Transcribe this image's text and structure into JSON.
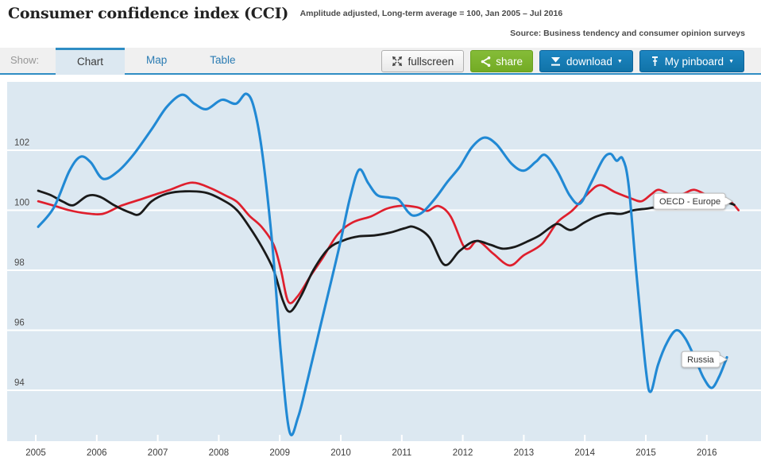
{
  "header": {
    "title": "Consumer confidence index (CCI)",
    "subtitle": "Amplitude adjusted, Long-term average = 100, Jan 2005 – Jul 2016",
    "source": "Source: Business tendency and consumer opinion surveys"
  },
  "toolbar": {
    "show_label": "Show:",
    "tabs": [
      {
        "label": "Chart",
        "active": true
      },
      {
        "label": "Map",
        "active": false
      },
      {
        "label": "Table",
        "active": false
      }
    ],
    "buttons": {
      "fullscreen": "fullscreen",
      "share": "share",
      "download": "download",
      "pinboard": "My pinboard",
      "caret": "▼"
    }
  },
  "colors": {
    "accent_blue": "#2f8dc4",
    "button_blue": "#1477b2",
    "button_green": "#7cb42e",
    "chart_bg": "#dce8f1",
    "gridline": "#ffffff",
    "line_russia": "#2189d4",
    "line_unlabeled": "#df1f2d",
    "line_oecd_europe": "#1a1a1a",
    "tick_label": "#4a4a4a"
  },
  "chart_data": {
    "type": "line",
    "title": "Consumer confidence index (CCI)",
    "subtitle": "Amplitude adjusted, Long-term average = 100, Jan 2005 – Jul 2016",
    "xlabel": "",
    "ylabel": "",
    "x_axis": {
      "ticks": [
        2005,
        2006,
        2007,
        2008,
        2009,
        2010,
        2011,
        2012,
        2013,
        2014,
        2015,
        2016
      ],
      "range": [
        2004.53,
        2016.89
      ],
      "gridlines": false
    },
    "y_axis": {
      "ticks": [
        94,
        96,
        98,
        100,
        102
      ],
      "range": [
        92.3,
        104.28
      ],
      "gridlines": true,
      "gridline_color": "#ffffff"
    },
    "legend_position": "inline-callouts",
    "series": [
      {
        "key": "unlabeled",
        "name": "",
        "color": "#df1f2d",
        "points": [
          [
            2005.04,
            100.3
          ],
          [
            2005.3,
            100.15
          ],
          [
            2005.55,
            100.0
          ],
          [
            2005.82,
            99.9
          ],
          [
            2006.1,
            99.88
          ],
          [
            2006.4,
            100.15
          ],
          [
            2006.7,
            100.35
          ],
          [
            2006.95,
            100.52
          ],
          [
            2007.2,
            100.68
          ],
          [
            2007.55,
            100.92
          ],
          [
            2007.85,
            100.75
          ],
          [
            2008.1,
            100.5
          ],
          [
            2008.3,
            100.28
          ],
          [
            2008.5,
            99.82
          ],
          [
            2008.7,
            99.45
          ],
          [
            2008.9,
            98.85
          ],
          [
            2009.02,
            98.0
          ],
          [
            2009.14,
            96.95
          ],
          [
            2009.3,
            97.15
          ],
          [
            2009.5,
            97.8
          ],
          [
            2009.7,
            98.4
          ],
          [
            2009.95,
            99.2
          ],
          [
            2010.2,
            99.6
          ],
          [
            2010.5,
            99.8
          ],
          [
            2010.75,
            100.05
          ],
          [
            2011.0,
            100.15
          ],
          [
            2011.25,
            100.1
          ],
          [
            2011.42,
            99.98
          ],
          [
            2011.6,
            100.14
          ],
          [
            2011.8,
            99.8
          ],
          [
            2012.0,
            98.85
          ],
          [
            2012.1,
            98.72
          ],
          [
            2012.25,
            98.98
          ],
          [
            2012.5,
            98.55
          ],
          [
            2012.77,
            98.16
          ],
          [
            2013.0,
            98.5
          ],
          [
            2013.3,
            98.88
          ],
          [
            2013.55,
            99.6
          ],
          [
            2013.8,
            100.0
          ],
          [
            2014.05,
            100.55
          ],
          [
            2014.25,
            100.84
          ],
          [
            2014.5,
            100.6
          ],
          [
            2014.75,
            100.4
          ],
          [
            2014.93,
            100.3
          ],
          [
            2015.1,
            100.55
          ],
          [
            2015.22,
            100.68
          ],
          [
            2015.45,
            100.48
          ],
          [
            2015.62,
            100.55
          ],
          [
            2015.8,
            100.68
          ],
          [
            2016.05,
            100.45
          ],
          [
            2016.25,
            100.3
          ],
          [
            2016.4,
            100.26
          ],
          [
            2016.52,
            100.0
          ]
        ]
      },
      {
        "key": "oecd_europe",
        "name": "OECD - Europe",
        "color": "#1a1a1a",
        "points": [
          [
            2005.04,
            100.65
          ],
          [
            2005.25,
            100.5
          ],
          [
            2005.45,
            100.28
          ],
          [
            2005.62,
            100.17
          ],
          [
            2005.85,
            100.48
          ],
          [
            2006.05,
            100.45
          ],
          [
            2006.3,
            100.15
          ],
          [
            2006.55,
            99.92
          ],
          [
            2006.7,
            99.87
          ],
          [
            2006.9,
            100.3
          ],
          [
            2007.15,
            100.55
          ],
          [
            2007.45,
            100.63
          ],
          [
            2007.8,
            100.58
          ],
          [
            2008.1,
            100.3
          ],
          [
            2008.3,
            100.0
          ],
          [
            2008.5,
            99.45
          ],
          [
            2008.7,
            98.8
          ],
          [
            2008.9,
            98.0
          ],
          [
            2009.05,
            97.0
          ],
          [
            2009.17,
            96.62
          ],
          [
            2009.35,
            97.15
          ],
          [
            2009.55,
            98.0
          ],
          [
            2009.8,
            98.72
          ],
          [
            2010.05,
            99.0
          ],
          [
            2010.3,
            99.13
          ],
          [
            2010.55,
            99.16
          ],
          [
            2010.8,
            99.25
          ],
          [
            2011.05,
            99.4
          ],
          [
            2011.2,
            99.44
          ],
          [
            2011.45,
            99.1
          ],
          [
            2011.7,
            98.18
          ],
          [
            2011.95,
            98.65
          ],
          [
            2012.2,
            98.97
          ],
          [
            2012.45,
            98.85
          ],
          [
            2012.65,
            98.72
          ],
          [
            2012.85,
            98.78
          ],
          [
            2013.05,
            98.95
          ],
          [
            2013.25,
            99.15
          ],
          [
            2013.45,
            99.45
          ],
          [
            2013.57,
            99.54
          ],
          [
            2013.77,
            99.34
          ],
          [
            2014.0,
            99.6
          ],
          [
            2014.2,
            99.8
          ],
          [
            2014.4,
            99.9
          ],
          [
            2014.6,
            99.88
          ],
          [
            2014.8,
            100.0
          ],
          [
            2015.0,
            100.05
          ],
          [
            2015.2,
            100.1
          ],
          [
            2015.5,
            100.06
          ],
          [
            2015.8,
            100.14
          ],
          [
            2016.05,
            100.22
          ],
          [
            2016.25,
            100.3
          ],
          [
            2016.45,
            100.18
          ]
        ]
      },
      {
        "key": "russia",
        "name": "Russia",
        "color": "#2189d4",
        "points": [
          [
            2005.04,
            99.45
          ],
          [
            2005.3,
            100.1
          ],
          [
            2005.55,
            101.3
          ],
          [
            2005.73,
            101.78
          ],
          [
            2005.9,
            101.6
          ],
          [
            2006.1,
            101.05
          ],
          [
            2006.35,
            101.3
          ],
          [
            2006.6,
            101.85
          ],
          [
            2006.9,
            102.7
          ],
          [
            2007.15,
            103.45
          ],
          [
            2007.4,
            103.85
          ],
          [
            2007.6,
            103.55
          ],
          [
            2007.8,
            103.37
          ],
          [
            2008.05,
            103.68
          ],
          [
            2008.28,
            103.55
          ],
          [
            2008.45,
            103.88
          ],
          [
            2008.58,
            103.4
          ],
          [
            2008.72,
            101.8
          ],
          [
            2008.88,
            98.8
          ],
          [
            2009.02,
            95.2
          ],
          [
            2009.16,
            92.62
          ],
          [
            2009.3,
            93.1
          ],
          [
            2009.45,
            94.3
          ],
          [
            2009.65,
            96.0
          ],
          [
            2009.85,
            97.7
          ],
          [
            2010.0,
            99.0
          ],
          [
            2010.15,
            100.4
          ],
          [
            2010.3,
            101.35
          ],
          [
            2010.45,
            100.9
          ],
          [
            2010.6,
            100.5
          ],
          [
            2010.8,
            100.42
          ],
          [
            2010.95,
            100.35
          ],
          [
            2011.1,
            99.95
          ],
          [
            2011.2,
            99.82
          ],
          [
            2011.35,
            99.95
          ],
          [
            2011.55,
            100.4
          ],
          [
            2011.75,
            100.95
          ],
          [
            2011.95,
            101.45
          ],
          [
            2012.15,
            102.1
          ],
          [
            2012.35,
            102.42
          ],
          [
            2012.55,
            102.2
          ],
          [
            2012.8,
            101.55
          ],
          [
            2013.0,
            101.32
          ],
          [
            2013.2,
            101.62
          ],
          [
            2013.35,
            101.84
          ],
          [
            2013.55,
            101.3
          ],
          [
            2013.75,
            100.5
          ],
          [
            2013.92,
            100.22
          ],
          [
            2014.1,
            100.9
          ],
          [
            2014.3,
            101.7
          ],
          [
            2014.42,
            101.88
          ],
          [
            2014.52,
            101.65
          ],
          [
            2014.62,
            101.72
          ],
          [
            2014.72,
            100.8
          ],
          [
            2014.85,
            97.8
          ],
          [
            2015.0,
            94.7
          ],
          [
            2015.08,
            93.95
          ],
          [
            2015.2,
            94.85
          ],
          [
            2015.35,
            95.6
          ],
          [
            2015.5,
            96.0
          ],
          [
            2015.65,
            95.72
          ],
          [
            2015.82,
            95.0
          ],
          [
            2015.95,
            94.4
          ],
          [
            2016.08,
            94.08
          ],
          [
            2016.2,
            94.45
          ],
          [
            2016.33,
            95.1
          ]
        ]
      }
    ],
    "annotations": [
      {
        "label": "OECD - Europe",
        "anchor_t": 2016.42,
        "anchor_v": 100.3
      },
      {
        "label": "Russia",
        "anchor_t": 2016.33,
        "anchor_v": 95.03
      }
    ]
  }
}
